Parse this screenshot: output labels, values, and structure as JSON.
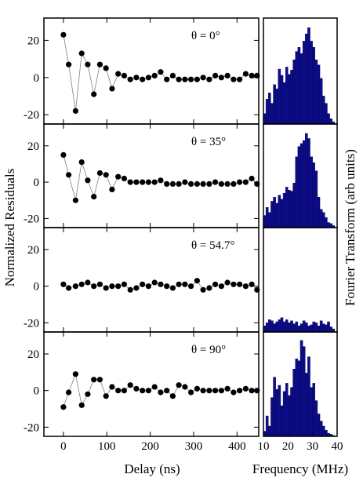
{
  "figure": {
    "ylabel_left": "Normalized Residuals",
    "ylabel_right": "Fourier Transform (arb units)",
    "xlabel_left": "Delay (ns)",
    "xlabel_right": "Frequency (MHz)"
  },
  "chart_data": [
    {
      "type": "line",
      "panel": "theta-0",
      "annotation": "θ = 0°",
      "xlim": [
        -45,
        450
      ],
      "ylim": [
        -25,
        32
      ],
      "yticks": [
        -20,
        0,
        20
      ],
      "xticks": [
        0,
        100,
        200,
        300,
        400
      ],
      "x": [
        0,
        12,
        28,
        42,
        56,
        70,
        84,
        98,
        112,
        126,
        140,
        154,
        168,
        182,
        196,
        210,
        224,
        238,
        252,
        266,
        280,
        294,
        308,
        322,
        336,
        350,
        364,
        378,
        392,
        406,
        420,
        434,
        446
      ],
      "y": [
        23,
        7,
        -18,
        13,
        7,
        -9,
        7,
        5,
        -6,
        2,
        1,
        -1,
        0,
        -1,
        0,
        1,
        3,
        -1,
        1,
        -1,
        -1,
        -1,
        -1,
        0,
        -1,
        1,
        0,
        1,
        -1,
        -1,
        2,
        1,
        1
      ]
    },
    {
      "type": "line",
      "panel": "theta-35",
      "annotation": "θ = 35°",
      "xlim": [
        -45,
        450
      ],
      "ylim": [
        -25,
        32
      ],
      "yticks": [
        -20,
        0,
        20
      ],
      "xticks": [
        0,
        100,
        200,
        300,
        400
      ],
      "x": [
        0,
        12,
        28,
        42,
        56,
        70,
        84,
        98,
        112,
        126,
        140,
        154,
        168,
        182,
        196,
        210,
        224,
        238,
        252,
        266,
        280,
        294,
        308,
        322,
        336,
        350,
        364,
        378,
        392,
        406,
        420,
        434,
        446
      ],
      "y": [
        15,
        4,
        -10,
        11,
        1,
        -8,
        5,
        4,
        -4,
        3,
        2,
        0,
        0,
        0,
        0,
        0,
        1,
        -1,
        -1,
        -1,
        0,
        -1,
        -1,
        -1,
        -1,
        0,
        -1,
        -1,
        -1,
        0,
        0,
        2,
        -1
      ]
    },
    {
      "type": "line",
      "panel": "theta-54.7",
      "annotation": "θ = 54.7°",
      "xlim": [
        -45,
        450
      ],
      "ylim": [
        -25,
        32
      ],
      "yticks": [
        -20,
        0,
        20
      ],
      "xticks": [
        0,
        100,
        200,
        300,
        400
      ],
      "x": [
        0,
        12,
        28,
        42,
        56,
        70,
        84,
        98,
        112,
        126,
        140,
        154,
        168,
        182,
        196,
        210,
        224,
        238,
        252,
        266,
        280,
        294,
        308,
        322,
        336,
        350,
        364,
        378,
        392,
        406,
        420,
        434,
        446
      ],
      "y": [
        1,
        -1,
        0,
        1,
        2,
        0,
        1,
        -1,
        0,
        0,
        1,
        -2,
        -1,
        1,
        0,
        2,
        1,
        0,
        -1,
        1,
        1,
        0,
        3,
        -2,
        -1,
        1,
        0,
        2,
        1,
        1,
        0,
        1,
        -2
      ]
    },
    {
      "type": "line",
      "panel": "theta-90",
      "annotation": "θ = 90°",
      "xlim": [
        -45,
        450
      ],
      "ylim": [
        -25,
        32
      ],
      "yticks": [
        -20,
        0,
        20
      ],
      "xticks": [
        0,
        100,
        200,
        300,
        400
      ],
      "xticklabels_visible": true,
      "x": [
        0,
        12,
        28,
        42,
        56,
        70,
        84,
        98,
        112,
        126,
        140,
        154,
        168,
        182,
        196,
        210,
        224,
        238,
        252,
        266,
        280,
        294,
        308,
        322,
        336,
        350,
        364,
        378,
        392,
        406,
        420,
        434,
        446
      ],
      "y": [
        -9,
        -1,
        9,
        -8,
        -2,
        6,
        6,
        -3,
        2,
        0,
        0,
        3,
        1,
        0,
        0,
        2,
        -1,
        0,
        -3,
        3,
        2,
        -1,
        1,
        0,
        0,
        0,
        0,
        1,
        -1,
        0,
        1,
        0,
        0
      ]
    },
    {
      "type": "bar",
      "panel": "ft-0",
      "xlim": [
        10,
        40
      ],
      "ylim": [
        0,
        1
      ],
      "bin_start": 10,
      "bin_width": 1,
      "values": [
        0.1,
        0.24,
        0.3,
        0.2,
        0.38,
        0.34,
        0.53,
        0.47,
        0.4,
        0.55,
        0.48,
        0.52,
        0.62,
        0.7,
        0.74,
        0.68,
        0.8,
        0.87,
        0.93,
        0.8,
        0.74,
        0.62,
        0.57,
        0.44,
        0.27,
        0.2,
        0.1,
        0.05,
        0.02
      ]
    },
    {
      "type": "bar",
      "panel": "ft-35",
      "xlim": [
        10,
        40
      ],
      "ylim": [
        0,
        1
      ],
      "bin_start": 10,
      "bin_width": 1,
      "values": [
        0.12,
        0.2,
        0.15,
        0.26,
        0.3,
        0.24,
        0.32,
        0.28,
        0.34,
        0.4,
        0.37,
        0.36,
        0.44,
        0.7,
        0.8,
        0.83,
        0.86,
        0.93,
        0.88,
        0.7,
        0.64,
        0.56,
        0.3,
        0.18,
        0.15,
        0.1,
        0.05,
        0.04,
        0.02
      ]
    },
    {
      "type": "bar",
      "panel": "ft-54.7",
      "xlim": [
        10,
        40
      ],
      "ylim": [
        0,
        1
      ],
      "bin_start": 10,
      "bin_width": 1,
      "values": [
        0.06,
        0.09,
        0.12,
        0.11,
        0.08,
        0.1,
        0.12,
        0.14,
        0.1,
        0.12,
        0.09,
        0.11,
        0.08,
        0.1,
        0.06,
        0.08,
        0.11,
        0.09,
        0.06,
        0.07,
        0.1,
        0.09,
        0.06,
        0.11,
        0.08,
        0.07,
        0.1,
        0.05,
        0.03
      ]
    },
    {
      "type": "bar",
      "panel": "ft-90",
      "xlim": [
        10,
        40
      ],
      "ylim": [
        0,
        1
      ],
      "bin_start": 10,
      "bin_width": 1,
      "xticks": [
        10,
        20,
        30,
        40
      ],
      "values": [
        0.05,
        0.2,
        0.1,
        0.38,
        0.58,
        0.46,
        0.5,
        0.3,
        0.44,
        0.52,
        0.4,
        0.48,
        0.66,
        0.76,
        0.74,
        0.94,
        0.88,
        0.62,
        0.78,
        0.48,
        0.52,
        0.35,
        0.22,
        0.15,
        0.1,
        0.06,
        0.03,
        0.02,
        0.01
      ]
    }
  ],
  "colors": {
    "marker": "#000000",
    "connector": "#808080",
    "bar_fill": "#0c0c8c",
    "bar_edge": "#000040"
  }
}
